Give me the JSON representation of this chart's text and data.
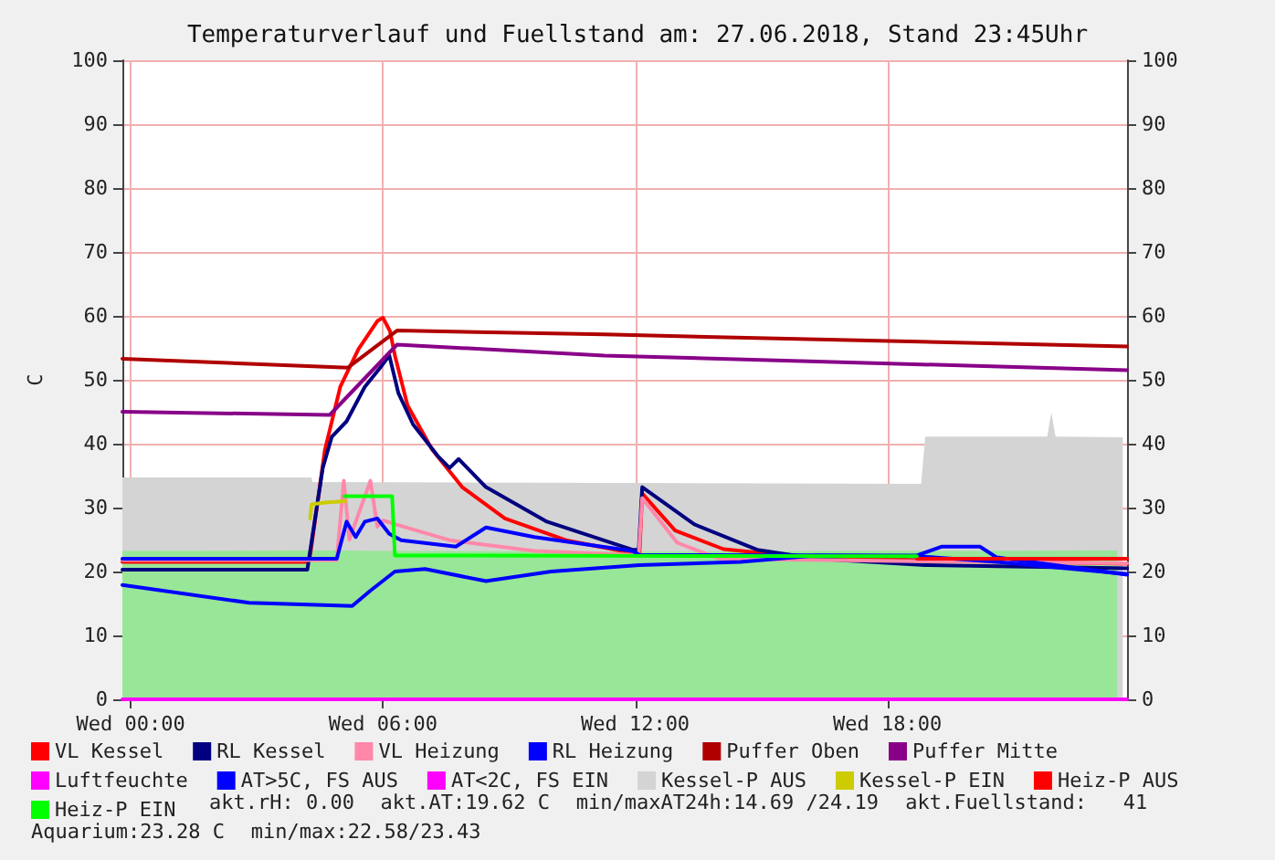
{
  "chart_data": {
    "type": "line",
    "title": "Temperaturverlauf und Fuellstand am: 27.06.2018, Stand 23:45Uhr",
    "ylabel": "C",
    "xlim": [
      "2018-06-26T23:48",
      "2018-06-27T23:42"
    ],
    "xticks": [
      {
        "value": "2018-06-27T00:00",
        "label": "Wed 00:00"
      },
      {
        "value": "2018-06-27T06:00",
        "label": "Wed 06:00"
      },
      {
        "value": "2018-06-27T12:00",
        "label": "Wed 12:00"
      },
      {
        "value": "2018-06-27T18:00",
        "label": "Wed 18:00"
      }
    ],
    "ylim": [
      0,
      100
    ],
    "yticks": [
      0,
      10,
      20,
      30,
      40,
      50,
      60,
      70,
      80,
      90,
      100
    ],
    "y2lim": [
      0,
      100
    ],
    "y2ticks": [
      0,
      10,
      20,
      30,
      40,
      50,
      60,
      70,
      80,
      90,
      100
    ],
    "grid": true,
    "legend": "bottom",
    "marker": "none",
    "line_style": "solid",
    "annotations": [
      "akt.rH: 0.00",
      "akt.AT:19.62 C",
      "min/maxAT24h:14.69 /24.19",
      "akt.Fuellstand:   41",
      "Aquarium:23.28 C",
      "min/max:22.58/23.43"
    ],
    "series": [
      {
        "name": "VL Kessel",
        "color": "#ff0000",
        "x": [
          "2018-06-26T23:48",
          "2018-06-27T04:12",
          "2018-06-27T04:16",
          "2018-06-27T04:37",
          "2018-06-27T04:59",
          "2018-06-27T05:25",
          "2018-06-27T05:52",
          "2018-06-27T06:00",
          "2018-06-27T06:10",
          "2018-06-27T06:17",
          "2018-06-27T06:35",
          "2018-06-27T07:10",
          "2018-06-27T07:53",
          "2018-06-27T08:54",
          "2018-06-27T10:21",
          "2018-06-27T11:56",
          "2018-06-27T12:06",
          "2018-06-27T12:10",
          "2018-06-27T12:57",
          "2018-06-27T14:06",
          "2018-06-27T15:36",
          "2018-06-27T18:42",
          "2018-06-27T23:42"
        ],
        "values": [
          21.5,
          21.5,
          22.5,
          39,
          48.9,
          54.8,
          59.2,
          59.7,
          57.6,
          53.8,
          46,
          39.1,
          33.2,
          28.3,
          24.9,
          22.9,
          22.5,
          32.2,
          26.4,
          23.5,
          22.5,
          21.8,
          21.2
        ]
      },
      {
        "name": "RL Kessel",
        "color": "#000080",
        "x": [
          "2018-06-26T23:48",
          "2018-06-27T04:12",
          "2018-06-27T04:34",
          "2018-06-27T04:47",
          "2018-06-27T05:08",
          "2018-06-27T05:34",
          "2018-06-27T05:56",
          "2018-06-27T06:09",
          "2018-06-27T06:22",
          "2018-06-27T06:43",
          "2018-06-27T07:18",
          "2018-06-27T07:35",
          "2018-06-27T07:48",
          "2018-06-27T08:27",
          "2018-06-27T09:54",
          "2018-06-27T11:56",
          "2018-06-27T12:05",
          "2018-06-27T12:10",
          "2018-06-27T13:24",
          "2018-06-27T14:54",
          "2018-06-27T16:18",
          "2018-06-27T18:54",
          "2018-06-27T23:42"
        ],
        "values": [
          20.3,
          20.3,
          36.2,
          41.1,
          43.5,
          48.9,
          51.9,
          53.8,
          47.9,
          43,
          38.1,
          36.2,
          37.6,
          33.2,
          27.8,
          23.4,
          23.4,
          33.2,
          27.4,
          23.4,
          22,
          21,
          20.5
        ]
      },
      {
        "name": "VL Heizung",
        "color": "#ff88aa",
        "x": [
          "2018-06-26T23:48",
          "2018-06-27T04:54",
          "2018-06-27T05:04",
          "2018-06-27T05:12",
          "2018-06-27T05:42",
          "2018-06-27T05:52",
          "2018-06-27T06:00",
          "2018-06-27T06:17",
          "2018-06-27T07:35",
          "2018-06-27T09:36",
          "2018-06-27T11:56",
          "2018-06-27T12:05",
          "2018-06-27T12:10",
          "2018-06-27T13:00",
          "2018-06-27T14:00",
          "2018-06-27T18:42",
          "2018-06-27T23:42"
        ],
        "values": [
          21.8,
          21.8,
          34.2,
          25,
          34.2,
          27,
          28,
          27.4,
          24.9,
          23.2,
          22.6,
          22.6,
          31.5,
          24.5,
          22,
          21.6,
          21.3
        ]
      },
      {
        "name": "RL Heizung",
        "color": "#0000ff",
        "x": [
          "2018-06-26T23:48",
          "2018-06-27T04:54",
          "2018-06-27T05:08",
          "2018-06-27T05:21",
          "2018-06-27T05:34",
          "2018-06-27T05:52",
          "2018-06-27T06:09",
          "2018-06-27T06:26",
          "2018-06-27T07:44",
          "2018-06-27T08:27",
          "2018-06-27T09:36",
          "2018-06-27T11:56",
          "2018-06-27T12:06",
          "2018-06-27T18:42",
          "2018-06-27T19:18",
          "2018-06-27T20:12",
          "2018-06-27T20:36",
          "2018-06-27T23:42"
        ],
        "values": [
          22,
          22,
          27.8,
          25.4,
          27.8,
          28.3,
          25.9,
          24.9,
          23.9,
          26.9,
          25.4,
          23.2,
          22.6,
          22.5,
          23.9,
          23.9,
          22.2,
          19.5
        ]
      },
      {
        "name": "Puffer Oben",
        "color": "#b00000",
        "x": [
          "2018-06-26T23:48",
          "2018-06-27T05:10",
          "2018-06-27T06:20",
          "2018-06-27T11:16",
          "2018-06-27T23:42"
        ],
        "values": [
          53.3,
          51.9,
          57.7,
          57.1,
          55.2
        ]
      },
      {
        "name": "Puffer Mitte",
        "color": "#880088",
        "x": [
          "2018-06-26T23:48",
          "2018-06-27T04:44",
          "2018-06-27T06:20",
          "2018-06-27T11:16",
          "2018-06-27T23:42"
        ],
        "values": [
          45,
          44.5,
          55.5,
          53.8,
          51.5
        ]
      },
      {
        "name": "Luftfeuchte",
        "color": "#ff00ff",
        "x": [
          "2018-06-26T23:48",
          "2018-06-27T23:42"
        ],
        "values": [
          0,
          0
        ]
      },
      {
        "name": "AT>5C, FS AUS",
        "color": "#0000ff",
        "x": [
          "2018-06-26T23:48",
          "2018-06-27T02:49",
          "2018-06-27T05:16",
          "2018-06-27T05:42",
          "2018-06-27T06:17",
          "2018-06-27T07:00",
          "2018-06-27T08:27",
          "2018-06-27T10:00",
          "2018-06-27T12:06",
          "2018-06-27T14:30",
          "2018-06-27T16:18",
          "2018-06-27T18:42",
          "2018-06-27T20:36",
          "2018-06-27T23:42"
        ],
        "values": [
          17.9,
          15.1,
          14.6,
          17,
          20,
          20.4,
          18.5,
          20,
          21,
          21.5,
          22.5,
          22.4,
          21.5,
          19.6
        ]
      },
      {
        "name": "AT<2C, FS EIN",
        "color": "#ff00ff"
      },
      {
        "name": "Kessel-P AUS",
        "type": "area",
        "color": "#d4d4d4",
        "x": [
          "2018-06-26T23:48",
          "2018-06-27T04:18",
          "2018-06-27T04:19",
          "2018-06-27T18:48",
          "2018-06-27T18:54",
          "2018-06-27T21:48",
          "2018-06-27T21:54",
          "2018-06-27T22:00",
          "2018-06-27T23:36"
        ],
        "values": [
          34.7,
          34.7,
          34,
          33.7,
          41.1,
          41.1,
          44.9,
          41.1,
          41
        ]
      },
      {
        "name": "Kessel-P EIN",
        "color": "#cccc00",
        "x": [
          "2018-06-27T04:16",
          "2018-06-27T04:18",
          "2018-06-27T04:36",
          "2018-06-27T05:06"
        ],
        "values": [
          28.3,
          30.5,
          30.8,
          31
        ]
      },
      {
        "name": "Heiz-P AUS",
        "color": "#ff0000",
        "x": [
          "2018-06-27T18:42",
          "2018-06-27T23:42"
        ],
        "values": [
          22,
          22
        ]
      },
      {
        "name": "Heiz-P EIN",
        "color": "#00ff00",
        "x": [
          "2018-06-27T05:05",
          "2018-06-27T06:13",
          "2018-06-27T06:17",
          "2018-06-27T18:42"
        ],
        "values": [
          31.8,
          31.8,
          22.5,
          22.4
        ]
      },
      {
        "type": "area",
        "color": "#98e698",
        "x": [
          "2018-06-26T23:48",
          "2018-06-27T05:00",
          "2018-06-27T06:00",
          "2018-06-27T12:00",
          "2018-06-27T18:00",
          "2018-06-27T23:28"
        ],
        "values": [
          23.2,
          23.3,
          23.2,
          23.1,
          23.2,
          23.3
        ]
      }
    ]
  }
}
